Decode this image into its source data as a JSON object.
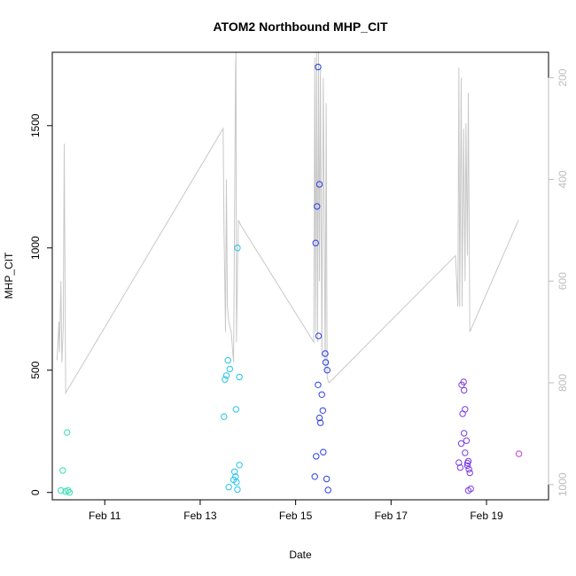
{
  "chart_data": {
    "type": "scatter",
    "title": "ATOM2 Northbound MHP_CIT",
    "xlabel": "Date",
    "ylabel": "MHP_CIT",
    "x_ticks": [
      {
        "label": "Feb 11",
        "value": 11
      },
      {
        "label": "Feb 13",
        "value": 13
      },
      {
        "label": "Feb 15",
        "value": 15
      },
      {
        "label": "Feb 17",
        "value": 17
      },
      {
        "label": "Feb 19",
        "value": 19
      }
    ],
    "xlim": [
      9.9,
      20.3
    ],
    "y_ticks": [
      0,
      500,
      1000,
      1500
    ],
    "ylim": [
      -30,
      1800
    ],
    "right_axis": {
      "ticks": [
        200,
        400,
        600,
        800,
        1000
      ],
      "lim": [
        1030,
        150
      ],
      "color": "#bdbdbd",
      "note": "secondary axis for grey line series (inverted)"
    },
    "grid": false,
    "colors": {
      "g1": "#33e0b5",
      "g2": "#22c4ea",
      "g3": "#2a3fe8",
      "g4": "#7b3fe0",
      "g5": "#c83ee0",
      "line": "#c8c8c8"
    },
    "series": [
      {
        "color": "g1",
        "points": [
          [
            10.08,
            8
          ],
          [
            10.12,
            90
          ],
          [
            10.18,
            4
          ],
          [
            10.21,
            245
          ],
          [
            10.23,
            8
          ],
          [
            10.26,
            0
          ]
        ]
      },
      {
        "color": "g2",
        "points": [
          [
            13.5,
            310
          ],
          [
            13.52,
            462
          ],
          [
            13.55,
            478
          ],
          [
            13.58,
            540
          ],
          [
            13.62,
            505
          ],
          [
            13.6,
            22
          ],
          [
            13.7,
            52
          ],
          [
            13.72,
            85
          ],
          [
            13.74,
            65
          ],
          [
            13.76,
            42
          ],
          [
            13.78,
            12
          ],
          [
            13.75,
            340
          ],
          [
            13.78,
            1000
          ],
          [
            13.82,
            472
          ],
          [
            13.82,
            112
          ]
        ]
      },
      {
        "color": "g3",
        "points": [
          [
            15.4,
            65
          ],
          [
            15.43,
            148
          ],
          [
            15.42,
            1020
          ],
          [
            15.45,
            1170
          ],
          [
            15.47,
            1740
          ],
          [
            15.5,
            1260
          ],
          [
            15.48,
            640
          ],
          [
            15.47,
            440
          ],
          [
            15.5,
            305
          ],
          [
            15.52,
            285
          ],
          [
            15.55,
            400
          ],
          [
            15.57,
            335
          ],
          [
            15.58,
            165
          ],
          [
            15.62,
            568
          ],
          [
            15.63,
            532
          ],
          [
            15.66,
            500
          ],
          [
            15.65,
            55
          ],
          [
            15.68,
            10
          ]
        ]
      },
      {
        "color": "g4",
        "points": [
          [
            18.42,
            122
          ],
          [
            18.45,
            102
          ],
          [
            18.47,
            200
          ],
          [
            18.48,
            440
          ],
          [
            18.52,
            452
          ],
          [
            18.5,
            322
          ],
          [
            18.53,
            418
          ],
          [
            18.55,
            340
          ],
          [
            18.53,
            242
          ],
          [
            18.58,
            212
          ],
          [
            18.55,
            162
          ],
          [
            18.6,
            120
          ],
          [
            18.62,
            128
          ],
          [
            18.6,
            110
          ],
          [
            18.63,
            95
          ],
          [
            18.65,
            80
          ],
          [
            18.62,
            8
          ],
          [
            18.67,
            15
          ]
        ]
      },
      {
        "color": "g5",
        "points": [
          [
            19.68,
            158
          ]
        ]
      }
    ],
    "line_series": {
      "axis": "right",
      "points": [
        [
          10.0,
          755
        ],
        [
          10.04,
          680
        ],
        [
          10.05,
          740
        ],
        [
          10.08,
          600
        ],
        [
          10.1,
          760
        ],
        [
          10.13,
          690
        ],
        [
          10.15,
          330
        ],
        [
          10.18,
          820
        ],
        [
          13.48,
          300
        ],
        [
          13.5,
          500
        ],
        [
          13.53,
          700
        ],
        [
          13.55,
          400
        ],
        [
          13.57,
          650
        ],
        [
          13.6,
          680
        ],
        [
          13.65,
          700
        ],
        [
          13.7,
          760
        ],
        [
          13.74,
          180
        ],
        [
          13.75,
          150
        ],
        [
          13.76,
          720
        ],
        [
          13.78,
          600
        ],
        [
          13.8,
          480
        ],
        [
          13.85,
          490
        ],
        [
          15.38,
          720
        ],
        [
          15.4,
          160
        ],
        [
          15.42,
          700
        ],
        [
          15.44,
          150
        ],
        [
          15.46,
          720
        ],
        [
          15.48,
          150
        ],
        [
          15.5,
          600
        ],
        [
          15.52,
          180
        ],
        [
          15.55,
          750
        ],
        [
          15.58,
          200
        ],
        [
          15.62,
          780
        ],
        [
          15.64,
          250
        ],
        [
          15.66,
          790
        ],
        [
          15.7,
          800
        ],
        [
          18.35,
          550
        ],
        [
          18.4,
          650
        ],
        [
          18.42,
          180
        ],
        [
          18.44,
          650
        ],
        [
          18.47,
          200
        ],
        [
          18.49,
          650
        ],
        [
          18.52,
          300
        ],
        [
          18.55,
          600
        ],
        [
          18.57,
          290
        ],
        [
          18.6,
          550
        ],
        [
          18.62,
          230
        ],
        [
          18.65,
          700
        ],
        [
          19.67,
          480
        ]
      ]
    }
  }
}
